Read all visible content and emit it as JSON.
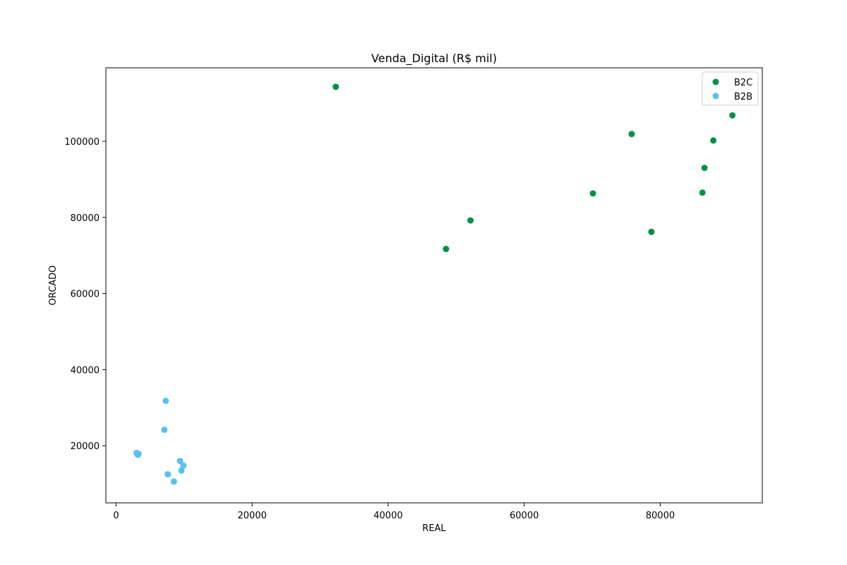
{
  "chart_data": {
    "type": "scatter",
    "title": "Venda_Digital (R$ mil)",
    "xlabel": "REAL",
    "ylabel": "ORCADO",
    "xlim": [
      -1500,
      95000
    ],
    "ylim": [
      5000,
      119300
    ],
    "xticks": [
      0,
      20000,
      40000,
      60000,
      80000
    ],
    "yticks": [
      20000,
      40000,
      60000,
      80000,
      100000
    ],
    "grid": false,
    "legend_position": "top-right",
    "series": [
      {
        "name": "B2C",
        "color": "#009245",
        "points": [
          {
            "x": 32300,
            "y": 114300
          },
          {
            "x": 48500,
            "y": 71700
          },
          {
            "x": 52100,
            "y": 79200
          },
          {
            "x": 70100,
            "y": 86300
          },
          {
            "x": 75800,
            "y": 101900
          },
          {
            "x": 78700,
            "y": 76200
          },
          {
            "x": 86200,
            "y": 86500
          },
          {
            "x": 86500,
            "y": 93000
          },
          {
            "x": 87800,
            "y": 100200
          },
          {
            "x": 90600,
            "y": 106800
          }
        ]
      },
      {
        "name": "B2B",
        "color": "#56C1F0",
        "points": [
          {
            "x": 7300,
            "y": 31800
          },
          {
            "x": 7100,
            "y": 24200
          },
          {
            "x": 3000,
            "y": 18100
          },
          {
            "x": 3300,
            "y": 17900
          },
          {
            "x": 3200,
            "y": 17600
          },
          {
            "x": 9400,
            "y": 16000
          },
          {
            "x": 9900,
            "y": 14800
          },
          {
            "x": 9600,
            "y": 13500
          },
          {
            "x": 7600,
            "y": 12500
          },
          {
            "x": 8500,
            "y": 10600
          }
        ]
      }
    ]
  }
}
